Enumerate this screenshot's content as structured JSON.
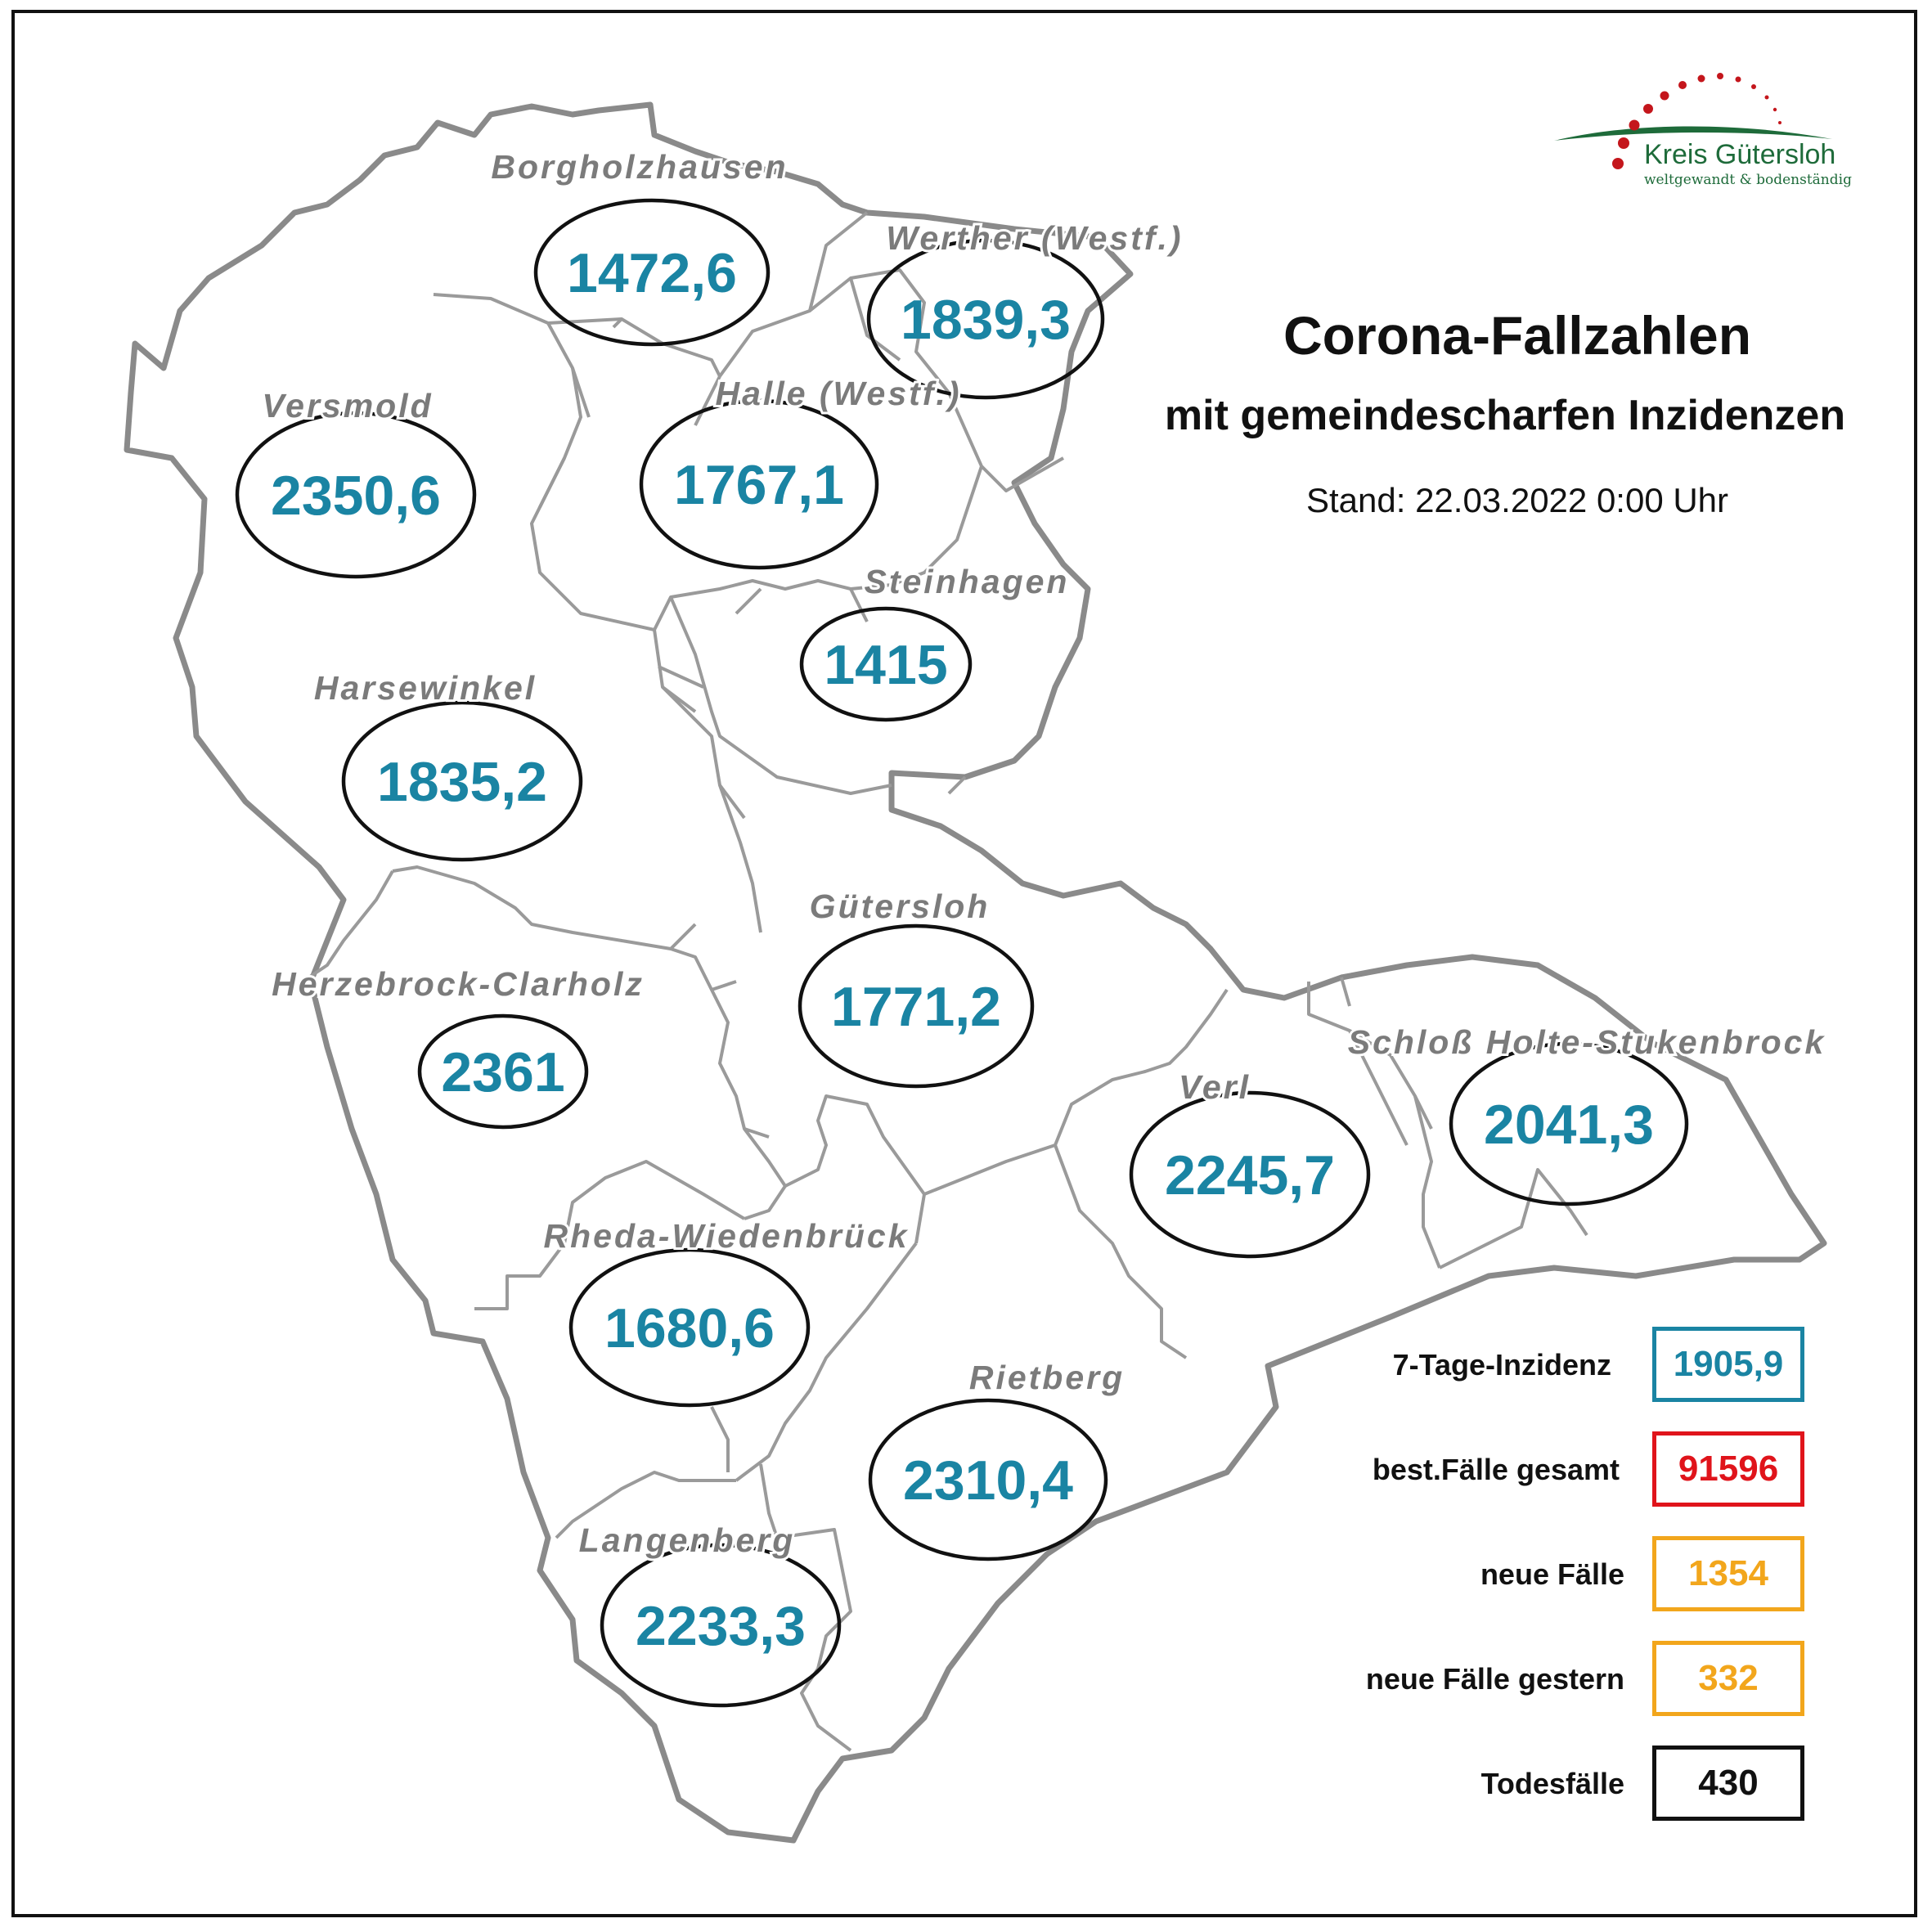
{
  "title": "Corona-Fallzahlen",
  "subtitle": "mit gemeindescharfen Inzidenzen",
  "stand": "Stand: 22.03.2022 0:00 Uhr",
  "logo": {
    "name": "Kreis Gütersloh",
    "tagline": "weltgewandt & bodenständig",
    "colors": {
      "green": "#1e6b3a",
      "red": "#c4161c"
    }
  },
  "colors": {
    "incidence_blue": "#1a84a3",
    "red": "#e0141b",
    "orange": "#f2a61c",
    "black": "#111111",
    "label_gray": "#7b7b7b",
    "border_gray": "#8a8a8a",
    "inner_border": "#9a9a9a"
  },
  "municipalities": [
    {
      "name": "Borgholzhausen",
      "value": "1472,6"
    },
    {
      "name": "Werther (Westf.)",
      "value": "1839,3"
    },
    {
      "name": "Halle (Westf.)",
      "value": "1767,1"
    },
    {
      "name": "Versmold",
      "value": "2350,6"
    },
    {
      "name": "Steinhagen",
      "value": "1415"
    },
    {
      "name": "Harsewinkel",
      "value": "1835,2"
    },
    {
      "name": "Gütersloh",
      "value": "1771,2"
    },
    {
      "name": "Herzebrock-Clarholz",
      "value": "2361"
    },
    {
      "name": "Verl",
      "value": "2245,7"
    },
    {
      "name": "Schloß Holte-Stukenbrock",
      "value": "2041,3"
    },
    {
      "name": "Rheda-Wiedenbrück",
      "value": "1680,6"
    },
    {
      "name": "Rietberg",
      "value": "2310,4"
    },
    {
      "name": "Langenberg",
      "value": "2233,3"
    }
  ],
  "legend": [
    {
      "label": "7-Tage-Inzidenz",
      "value": "1905,9",
      "color": "#1a84a3"
    },
    {
      "label": "best.Fälle gesamt",
      "value": "91596",
      "color": "#e0141b"
    },
    {
      "label": "neue Fälle",
      "value": "1354",
      "color": "#f2a61c"
    },
    {
      "label": "neue Fälle gestern",
      "value": "332",
      "color": "#f2a61c"
    },
    {
      "label": "Todesfälle",
      "value": "430",
      "color": "#111111"
    }
  ]
}
